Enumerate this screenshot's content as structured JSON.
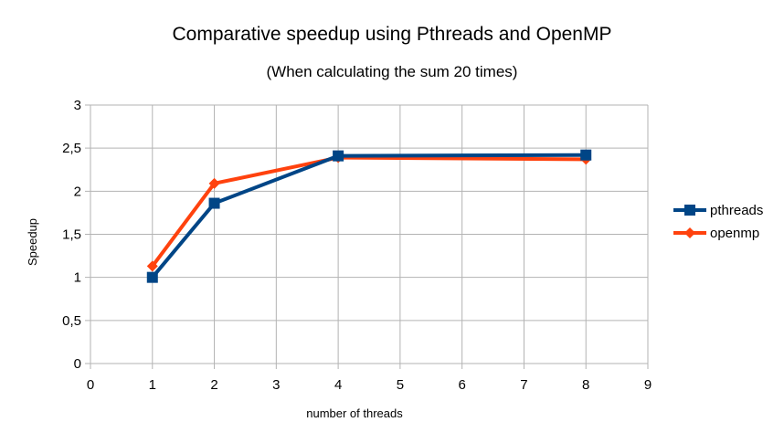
{
  "chart_data": {
    "type": "line",
    "title": "Comparative speedup using Pthreads and OpenMP",
    "subtitle": "(When calculating the sum 20 times)",
    "xlabel": "number of threads",
    "ylabel": "Speedup",
    "xlim": [
      0,
      9
    ],
    "ylim": [
      0,
      3
    ],
    "x_ticks": [
      "0",
      "1",
      "2",
      "3",
      "4",
      "5",
      "6",
      "7",
      "8",
      "9"
    ],
    "y_ticks": [
      "0",
      "0,5",
      "1",
      "1,5",
      "2",
      "2,5",
      "3"
    ],
    "grid": "major both axes",
    "legend_position": "right",
    "series": [
      {
        "name": "pthreads",
        "color": "#004586",
        "marker": "square",
        "x": [
          1,
          2,
          4,
          8
        ],
        "values": [
          1.0,
          1.86,
          2.41,
          2.42
        ]
      },
      {
        "name": "openmp",
        "color": "#ff420e",
        "marker": "diamond",
        "x": [
          1,
          2,
          4,
          8
        ],
        "values": [
          1.13,
          2.09,
          2.39,
          2.37
        ]
      }
    ]
  }
}
